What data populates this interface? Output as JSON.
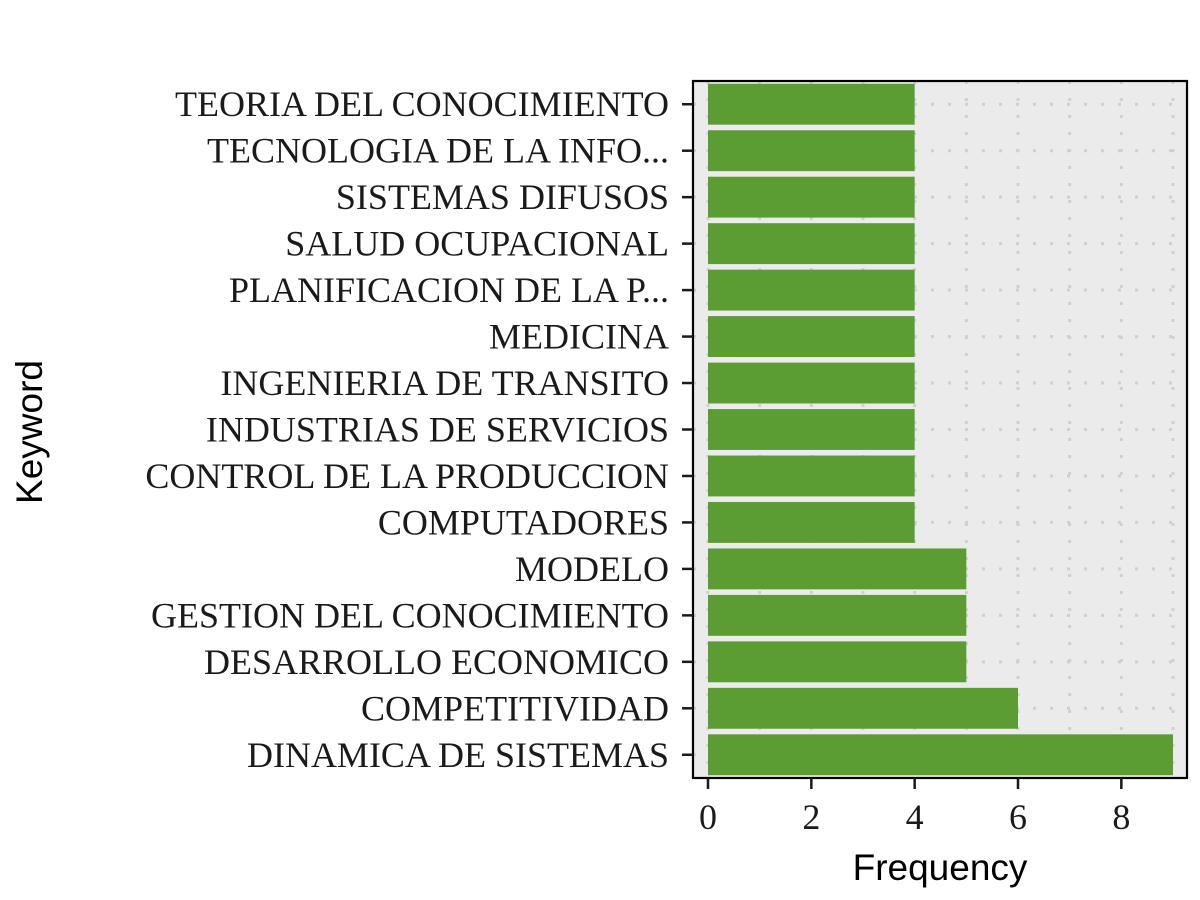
{
  "chart_data": {
    "type": "bar",
    "orientation": "horizontal",
    "xlabel": "Frequency",
    "ylabel": "Keyword",
    "categories": [
      "TEORIA DEL CONOCIMIENTO",
      "TECNOLOGIA DE LA INFO...",
      "SISTEMAS DIFUSOS",
      "SALUD OCUPACIONAL",
      "PLANIFICACION DE LA P...",
      "MEDICINA",
      "INGENIERIA DE TRANSITO",
      "INDUSTRIAS DE SERVICIOS",
      "CONTROL DE LA PRODUCCION",
      "COMPUTADORES",
      "MODELO",
      "GESTION DEL CONOCIMIENTO",
      "DESARROLLO ECONOMICO",
      "COMPETITIVIDAD",
      "DINAMICA DE SISTEMAS"
    ],
    "values": [
      4,
      4,
      4,
      4,
      4,
      4,
      4,
      4,
      4,
      4,
      5,
      5,
      5,
      6,
      9
    ],
    "xlim": [
      0,
      9.25
    ],
    "xticks": [
      0,
      2,
      4,
      6,
      8
    ],
    "grid": true,
    "legend": "none",
    "bar_color": "#5b9d32",
    "panel_color": "#ebebeb",
    "grid_color": "#d0d0d0"
  }
}
